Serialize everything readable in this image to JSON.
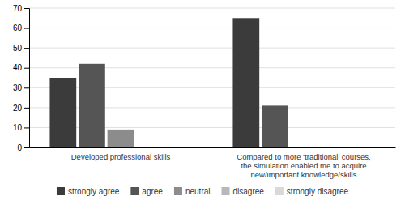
{
  "chart_data": {
    "type": "bar",
    "categories": [
      "Developed professional skills",
      "Compared to more ‘traditional’ courses,\nthe simulation enabled me to acquire\nnew/important knowledge/skills"
    ],
    "series": [
      {
        "name": "strongly agree",
        "color": "#3b3b3b",
        "values": [
          35,
          65
        ]
      },
      {
        "name": "agree",
        "color": "#555555",
        "values": [
          42,
          21
        ]
      },
      {
        "name": "neutral",
        "color": "#8c8c8c",
        "values": [
          9,
          0
        ]
      },
      {
        "name": "disagree",
        "color": "#b8b8b8",
        "values": [
          0,
          0
        ]
      },
      {
        "name": "strongly disagree",
        "color": "#d8d8d8",
        "values": [
          0,
          0
        ]
      }
    ],
    "ylim": [
      0,
      70
    ],
    "yticks": [
      0,
      10,
      20,
      30,
      40,
      50,
      60,
      70
    ],
    "grid": true,
    "legend": "bottom"
  }
}
